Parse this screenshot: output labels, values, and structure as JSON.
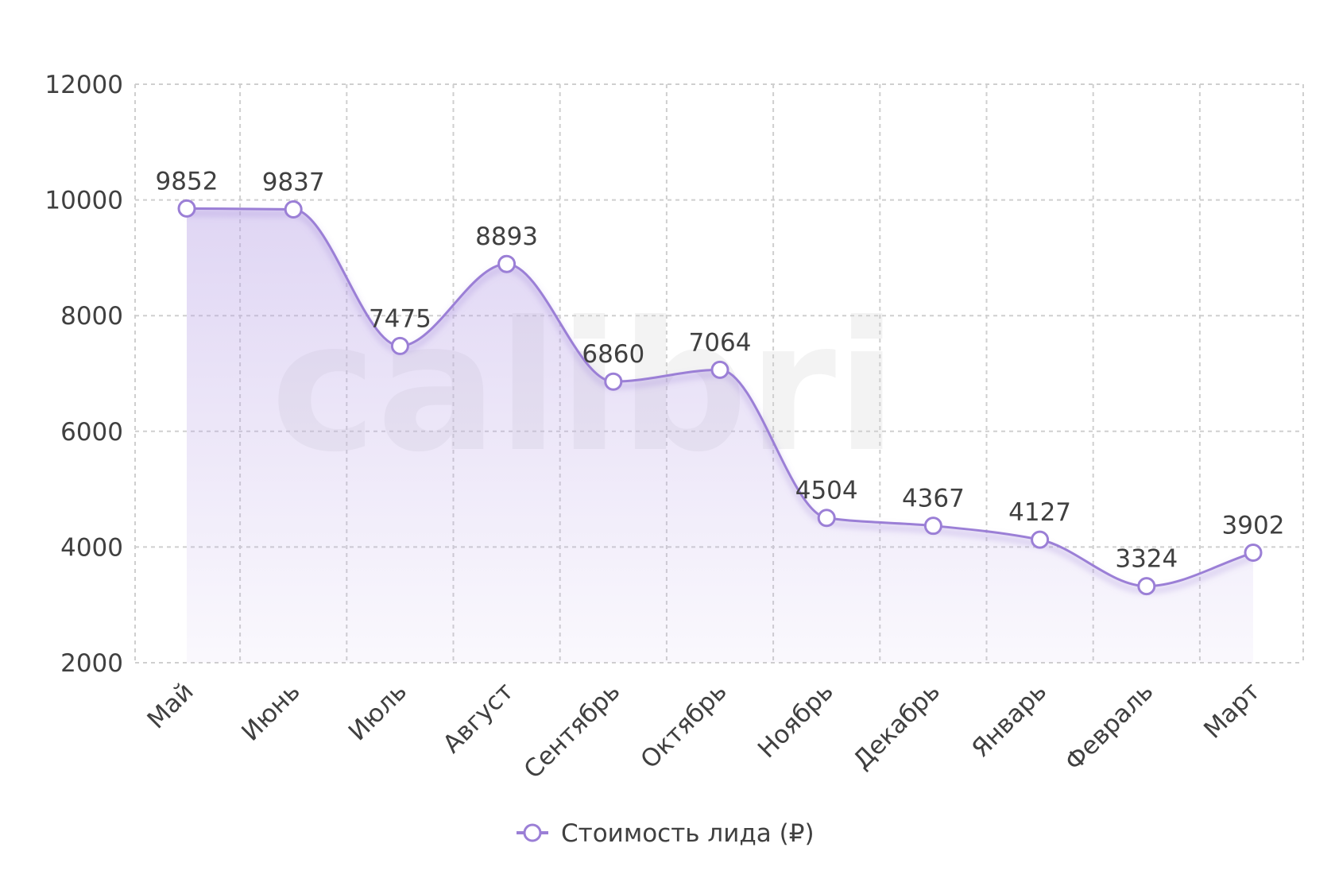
{
  "chart_data": {
    "type": "area",
    "categories": [
      "Май",
      "Июнь",
      "Июль",
      "Август",
      "Сентябрь",
      "Октябрь",
      "Ноябрь",
      "Декабрь",
      "Январь",
      "Февраль",
      "Март"
    ],
    "series": [
      {
        "name": "Стоимость лида (₽)",
        "values": [
          9852,
          9837,
          7475,
          8893,
          6860,
          7064,
          4504,
          4367,
          4127,
          3324,
          3902
        ],
        "color": "#9b7fd6"
      }
    ],
    "y_ticks": [
      2000,
      4000,
      6000,
      8000,
      10000,
      12000
    ],
    "ylim": [
      2000,
      12000
    ],
    "grid": true,
    "legend_position": "bottom-center",
    "data_labels": true,
    "watermark": "calibri"
  }
}
